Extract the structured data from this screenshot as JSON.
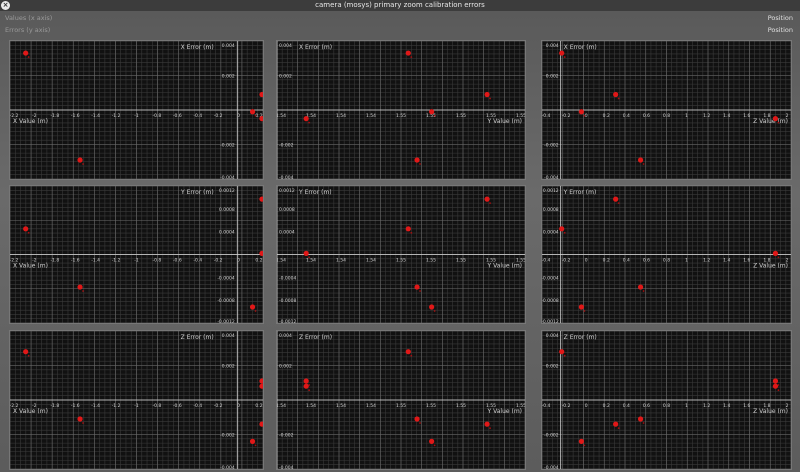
{
  "window": {
    "title": "camera (mosys) primary zoom calibration errors",
    "close_icon": "close-icon"
  },
  "header": {
    "rows": [
      {
        "label": "Values (x axis)",
        "value": "Position"
      },
      {
        "label": "Errors (y axis)",
        "value": "Position"
      }
    ]
  },
  "colors": {
    "point": "#e01818",
    "grid_minor": "#3a3a3a",
    "grid_major": "#6a6a6a",
    "axis": "#d8d8d8",
    "text": "#d0d0d0",
    "background": "#111111"
  },
  "chart_data": [
    {
      "type": "scatter",
      "xlabel": "X Value (m)",
      "ylabel": "X Error (m)",
      "xticks": [
        "-2.2",
        "-2",
        "-1.8",
        "-1.6",
        "-1.4",
        "-1.2",
        "-1",
        "-0.8",
        "-0.6",
        "-0.4",
        "-0.2",
        "0",
        "0.2"
      ],
      "xlim": [
        -2.2,
        0.22
      ],
      "ylim": [
        -0.004,
        0.004
      ],
      "yticks": [
        "0.004",
        "0.002",
        "-0.002",
        "-0.004"
      ],
      "points": [
        {
          "x": -2.05,
          "y": 0.0033
        },
        {
          "x": -1.53,
          "y": -0.0029
        },
        {
          "x": 0.12,
          "y": -0.0001
        },
        {
          "x": 0.21,
          "y": 0.0009
        },
        {
          "x": 0.21,
          "y": -0.0005
        }
      ]
    },
    {
      "type": "scatter",
      "xlabel": "Y Value (m)",
      "ylabel": "X Error (m)",
      "xticks": [
        "1.54",
        "1.54",
        "1.54",
        "1.54",
        "1.55",
        "1.55",
        "1.55",
        "1.55",
        "1.55"
      ],
      "xlim": [
        0,
        8.5
      ],
      "ylim": [
        -0.004,
        0.004
      ],
      "yticks": [
        "0.004",
        "0.002",
        "-0.002",
        "-0.004"
      ],
      "points": [
        {
          "x": 1.0,
          "y": -0.0005
        },
        {
          "x": 4.5,
          "y": 0.0033
        },
        {
          "x": 4.8,
          "y": -0.0029
        },
        {
          "x": 5.3,
          "y": -0.0001
        },
        {
          "x": 7.2,
          "y": 0.0009
        }
      ]
    },
    {
      "type": "scatter",
      "xlabel": "Z Value (m)",
      "ylabel": "X Error (m)",
      "xticks": [
        "-0.4",
        "-0.2",
        "0",
        "0.2",
        "0.4",
        "0.6",
        "0.8",
        "1",
        "1.2",
        "1.4",
        "1.6",
        "1.8",
        "2"
      ],
      "xlim": [
        -0.4,
        2.0
      ],
      "ylim": [
        -0.004,
        0.004
      ],
      "yticks": [
        "0.004",
        "0.002",
        "-0.002",
        "-0.004"
      ],
      "points": [
        {
          "x": -0.21,
          "y": 0.0033
        },
        {
          "x": -0.02,
          "y": -0.0001
        },
        {
          "x": 0.31,
          "y": 0.0009
        },
        {
          "x": 0.55,
          "y": -0.0029
        },
        {
          "x": 1.85,
          "y": -0.0005
        }
      ]
    },
    {
      "type": "scatter",
      "xlabel": "X Value (m)",
      "ylabel": "Y Error (m)",
      "xticks": [
        "-2.2",
        "-2",
        "-1.8",
        "-1.6",
        "-1.4",
        "-1.2",
        "-1",
        "-0.8",
        "-0.6",
        "-0.4",
        "-0.2",
        "0",
        "0.2"
      ],
      "xlim": [
        -2.2,
        0.22
      ],
      "ylim": [
        -0.0012,
        0.0012
      ],
      "yticks": [
        "0.0012",
        "0.0008",
        "0.0004",
        "-0.0004",
        "-0.0008",
        "-0.0012"
      ],
      "points": [
        {
          "x": -2.05,
          "y": 0.00045
        },
        {
          "x": -1.53,
          "y": -0.00057
        },
        {
          "x": 0.12,
          "y": -0.00092
        },
        {
          "x": 0.21,
          "y": 0.00097
        },
        {
          "x": 0.21,
          "y": 2e-05
        }
      ]
    },
    {
      "type": "scatter",
      "xlabel": "Y Value (m)",
      "ylabel": "Y Error (m)",
      "xticks": [
        "1.54",
        "1.54",
        "1.54",
        "1.54",
        "1.55",
        "1.55",
        "1.55",
        "1.55",
        "1.55"
      ],
      "xlim": [
        0,
        8.5
      ],
      "ylim": [
        -0.0012,
        0.0012
      ],
      "yticks": [
        "0.0012",
        "0.0008",
        "0.0004",
        "-0.0004",
        "-0.0008",
        "-0.0012"
      ],
      "points": [
        {
          "x": 1.0,
          "y": 2e-05
        },
        {
          "x": 4.5,
          "y": 0.00045
        },
        {
          "x": 4.8,
          "y": -0.00057
        },
        {
          "x": 5.3,
          "y": -0.00092
        },
        {
          "x": 7.2,
          "y": 0.00097
        }
      ]
    },
    {
      "type": "scatter",
      "xlabel": "Z Value (m)",
      "ylabel": "Y Error (m)",
      "xticks": [
        "-0.4",
        "-0.2",
        "0",
        "0.2",
        "0.4",
        "0.6",
        "0.8",
        "1",
        "1.2",
        "1.4",
        "1.6",
        "1.8",
        "2"
      ],
      "xlim": [
        -0.4,
        2.0
      ],
      "ylim": [
        -0.0012,
        0.0012
      ],
      "yticks": [
        "0.0012",
        "0.0008",
        "0.0004",
        "-0.0004",
        "-0.0008",
        "-0.0012"
      ],
      "points": [
        {
          "x": -0.21,
          "y": 0.00045
        },
        {
          "x": -0.02,
          "y": -0.00092
        },
        {
          "x": 0.31,
          "y": 0.00097
        },
        {
          "x": 0.55,
          "y": -0.00057
        },
        {
          "x": 1.85,
          "y": 2e-05
        }
      ]
    },
    {
      "type": "scatter",
      "xlabel": "X Value (m)",
      "ylabel": "Z Error (m)",
      "xticks": [
        "-2.2",
        "-2",
        "-1.8",
        "-1.6",
        "-1.4",
        "-1.2",
        "-1",
        "-0.8",
        "-0.6",
        "-0.4",
        "-0.2",
        "0",
        "0.2"
      ],
      "xlim": [
        -2.2,
        0.22
      ],
      "ylim": [
        -0.004,
        0.004
      ],
      "yticks": [
        "0.004",
        "0.002",
        "-0.002",
        "-0.004"
      ],
      "points": [
        {
          "x": -2.05,
          "y": 0.0028
        },
        {
          "x": -1.53,
          "y": -0.0011
        },
        {
          "x": 0.12,
          "y": -0.0024
        },
        {
          "x": 0.21,
          "y": 0.0011
        },
        {
          "x": 0.21,
          "y": 0.0008
        },
        {
          "x": 0.21,
          "y": -0.0014
        }
      ]
    },
    {
      "type": "scatter",
      "xlabel": "Y Value (m)",
      "ylabel": "Z Error (m)",
      "xticks": [
        "1.54",
        "1.54",
        "1.54",
        "1.54",
        "1.55",
        "1.55",
        "1.55",
        "1.55",
        "1.55"
      ],
      "xlim": [
        0,
        8.5
      ],
      "ylim": [
        -0.004,
        0.004
      ],
      "yticks": [
        "0.004",
        "0.002",
        "-0.002",
        "-0.004"
      ],
      "points": [
        {
          "x": 1.0,
          "y": 0.0011
        },
        {
          "x": 1.0,
          "y": 0.0008
        },
        {
          "x": 4.5,
          "y": 0.0028
        },
        {
          "x": 4.8,
          "y": -0.0011
        },
        {
          "x": 5.3,
          "y": -0.0024
        },
        {
          "x": 7.2,
          "y": -0.0014
        }
      ]
    },
    {
      "type": "scatter",
      "xlabel": "Z Value (m)",
      "ylabel": "Z Error (m)",
      "xticks": [
        "-0.4",
        "-0.2",
        "0",
        "0.2",
        "0.4",
        "0.6",
        "0.8",
        "1",
        "1.2",
        "1.4",
        "1.6",
        "1.8",
        "2"
      ],
      "xlim": [
        -0.4,
        2.0
      ],
      "ylim": [
        -0.004,
        0.004
      ],
      "yticks": [
        "0.004",
        "0.002",
        "-0.002",
        "-0.004"
      ],
      "points": [
        {
          "x": -0.21,
          "y": 0.0028
        },
        {
          "x": -0.02,
          "y": -0.0024
        },
        {
          "x": 0.31,
          "y": -0.0014
        },
        {
          "x": 0.55,
          "y": -0.0011
        },
        {
          "x": 1.85,
          "y": 0.0011
        },
        {
          "x": 1.85,
          "y": 0.0008
        }
      ]
    }
  ]
}
